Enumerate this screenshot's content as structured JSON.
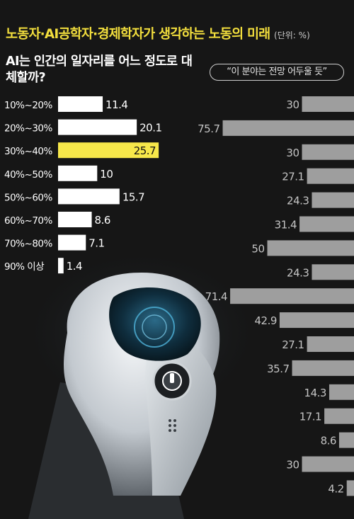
{
  "title": "노동자·AI공학자·경제학자가 생각하는 노동의 미래",
  "unit": "(단위: %)",
  "left_question": "AI는 인간의 일자리를 어느 정도로 대체할까?",
  "right_question": "“이 분야는 전망 어두울 듯”",
  "colors": {
    "title": "#f2de3d",
    "highlight": "#f7e84a",
    "left_bar": "#ffffff",
    "right_bar": "#9e9e9e",
    "background": "#161616"
  },
  "chart_data": [
    {
      "type": "bar",
      "orientation": "horizontal",
      "title": "AI는 인간의 일자리를 어느 정도로 대체할까?",
      "categories": [
        "10%~20%",
        "20%~30%",
        "30%~40%",
        "40%~50%",
        "50%~60%",
        "60%~70%",
        "70%~80%",
        "90% 이상"
      ],
      "values": [
        11.4,
        20.1,
        25.7,
        10,
        15.7,
        8.6,
        7.1,
        1.4
      ],
      "highlight": "30%~40%",
      "xlim": [
        0,
        30
      ]
    },
    {
      "type": "bar",
      "orientation": "horizontal",
      "direction": "right-to-left",
      "title": "“이 분야는 전망 어두울 듯”",
      "values": [
        30,
        75.7,
        30,
        27.1,
        24.3,
        31.4,
        50,
        24.3,
        71.4,
        42.9,
        27.1,
        35.7,
        14.3,
        17.1,
        8.6,
        30,
        4.2
      ],
      "xlim": [
        0,
        80
      ]
    }
  ]
}
